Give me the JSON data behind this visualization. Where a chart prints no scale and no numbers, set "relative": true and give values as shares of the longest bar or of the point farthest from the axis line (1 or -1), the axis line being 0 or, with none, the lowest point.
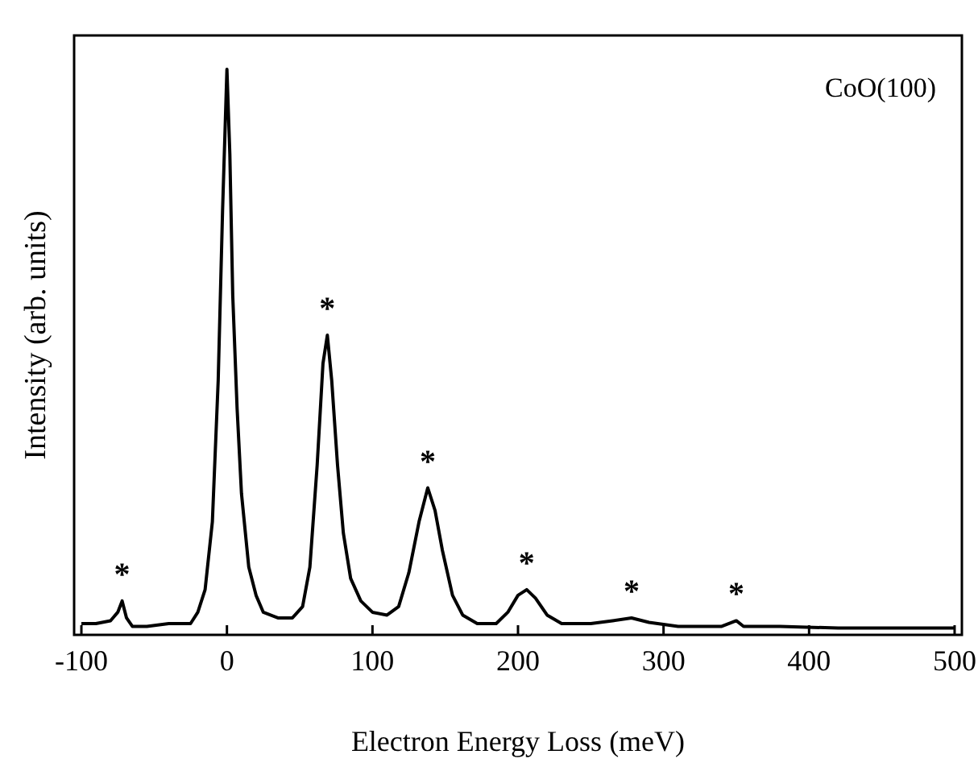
{
  "chart_data": {
    "type": "line",
    "relative": true,
    "xlabel": "Electron Energy Loss (meV)",
    "ylabel": "Intensity (arb. units)",
    "xlim": [
      -105,
      505
    ],
    "xticks": [
      -100,
      0,
      100,
      200,
      300,
      400,
      500
    ],
    "grid": false,
    "line_style": "solid",
    "annotations": [
      "CoO(100)",
      {
        "text": "*",
        "x": -72,
        "y": 0.06
      },
      {
        "text": "*",
        "x": 69,
        "y": 0.53
      },
      {
        "text": "*",
        "x": 138,
        "y": 0.26
      },
      {
        "text": "*",
        "x": 206,
        "y": 0.08
      },
      {
        "text": "*",
        "x": 278,
        "y": 0.03
      },
      {
        "text": "*",
        "x": 350,
        "y": 0.025
      }
    ],
    "series": [
      {
        "color": "#000000",
        "x": [
          -100,
          -90,
          -80,
          -75,
          -72,
          -69,
          -65,
          -55,
          -40,
          -25,
          -20,
          -15,
          -10,
          -6,
          -3,
          0,
          2,
          4,
          7,
          10,
          15,
          20,
          25,
          35,
          45,
          52,
          57,
          62,
          66,
          69,
          72,
          76,
          80,
          85,
          92,
          100,
          110,
          118,
          125,
          132,
          138,
          143,
          148,
          155,
          162,
          172,
          185,
          193,
          200,
          206,
          212,
          220,
          230,
          250,
          265,
          278,
          290,
          310,
          340,
          350,
          355,
          380,
          420,
          460,
          500
        ],
        "values": [
          0.02,
          0.02,
          0.025,
          0.04,
          0.06,
          0.03,
          0.015,
          0.015,
          0.02,
          0.02,
          0.04,
          0.08,
          0.2,
          0.45,
          0.75,
          1,
          0.85,
          0.6,
          0.4,
          0.25,
          0.12,
          0.07,
          0.04,
          0.03,
          0.03,
          0.05,
          0.12,
          0.3,
          0.48,
          0.53,
          0.45,
          0.3,
          0.18,
          0.1,
          0.06,
          0.04,
          0.035,
          0.05,
          0.11,
          0.2,
          0.26,
          0.22,
          0.15,
          0.07,
          0.035,
          0.02,
          0.02,
          0.04,
          0.07,
          0.08,
          0.065,
          0.035,
          0.02,
          0.02,
          0.025,
          0.03,
          0.022,
          0.015,
          0.015,
          0.025,
          0.015,
          0.015,
          0.012,
          0.012,
          0.012
        ]
      }
    ]
  }
}
